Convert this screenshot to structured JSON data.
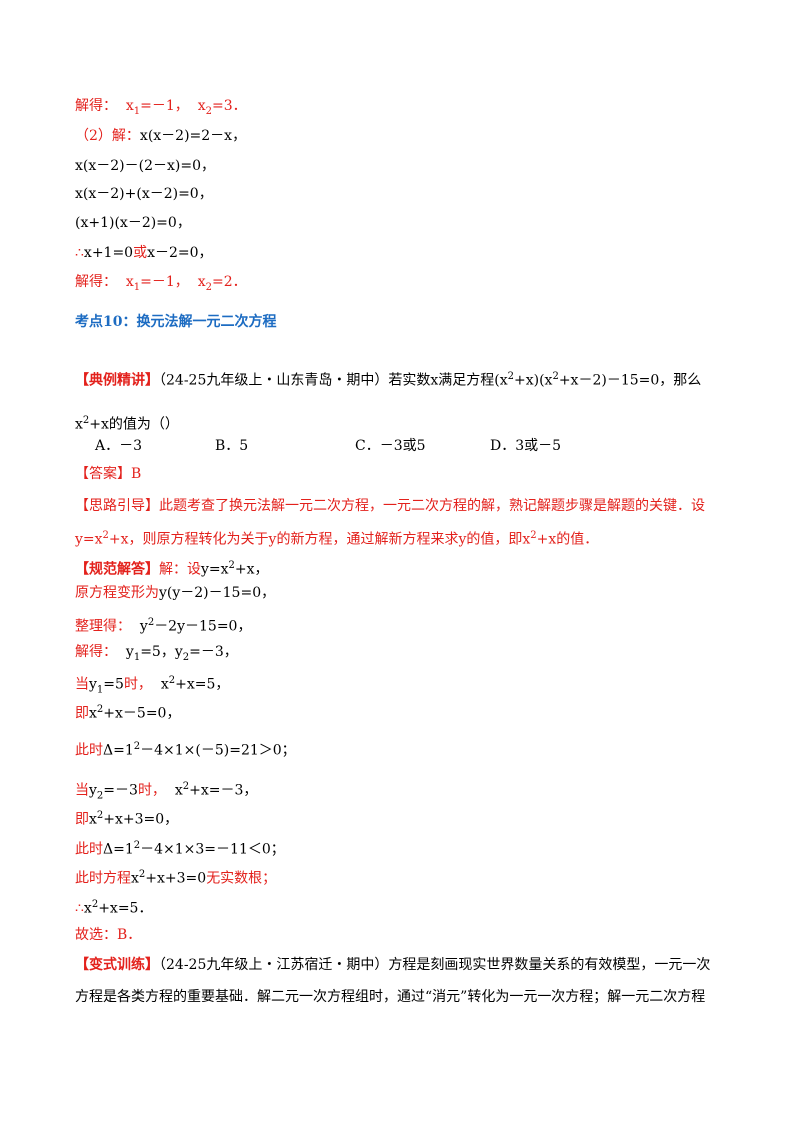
{
  "lines": [
    [
      "解得：  x",
      "1",
      "=－1，  x",
      "2",
      "=3．"
    ],
    [
      "（2）解：",
      "x(x－2)=2－x，"
    ],
    [
      "x(x－2)－(2－x)=0，"
    ],
    [
      "x(x－2)+(x－2)=0，"
    ],
    [
      "(x+1)(x－2)=0，"
    ],
    [
      "∴",
      "x+1=0",
      "或",
      "x－2=0，"
    ],
    [
      "解得：  x",
      "1",
      "=－1，  x",
      "2",
      "=2．"
    ],
    [
      "考点10：换元法解一元二次方程"
    ],
    [
      "【典例精讲】",
      "（24-25九年级上・山东青岛・期中）若实数x满足方程(x",
      "2",
      "+x)(x",
      "2",
      "+x－2)－15=0，那么"
    ],
    [
      "x",
      "2",
      "+x的值为（）"
    ],
    [
      "A．－3",
      "B．5",
      "C．－3或5",
      "D．3或－5"
    ],
    [
      "【答案】B"
    ],
    [
      "【思路引导】此题考查了换元法解一元二次方程，一元二次方程的解，熟记解题步骤是解题的关键．设"
    ],
    [
      "y=x",
      "2",
      "+x，则原方程转化为关于y的新方程，通过解新方程来求y的值，即x",
      "2",
      "+x的值．"
    ],
    [
      "【规范解答】",
      "解：设",
      "y=x",
      "2",
      "+x，"
    ],
    [
      "原方程变形为",
      "y(y－2)－15=0，"
    ],
    [
      "整理得：",
      "  y",
      "2",
      "－2y－15=0，"
    ],
    [
      "解得：",
      "  y",
      "1",
      "=5，y",
      "2",
      "=－3，"
    ],
    [
      "当",
      "y",
      "1",
      "=5",
      "时，",
      "  x",
      "2",
      "+x=5，"
    ],
    [
      "即",
      "x",
      "2",
      "+x－5=0，"
    ],
    [
      "此时",
      "Δ=1",
      "2",
      "－4×1×(－5)=21＞0；"
    ],
    [
      "当",
      "y",
      "2",
      "=－3",
      "时，",
      "  x",
      "2",
      "+x=－3，"
    ],
    [
      "即",
      "x",
      "2",
      "+x+3=0，"
    ],
    [
      "此时",
      "Δ=1",
      "2",
      "－4×1×3=－11＜0；"
    ],
    [
      "此时方程",
      "x",
      "2",
      "+x+3=0",
      "无实数根；"
    ],
    [
      "∴",
      "x",
      "2",
      "+x=5．"
    ],
    [
      "故选：B．"
    ],
    [
      "【变式训练】",
      "（24-25九年级上・江苏宿迁・期中）方程是刻画现实世界数量关系的有效模型，一元一次"
    ],
    [
      "方程是各类方程的重要基础．解二元一次方程组时，通过“消元”转化为一元一次方程；解一元二次方程"
    ]
  ]
}
